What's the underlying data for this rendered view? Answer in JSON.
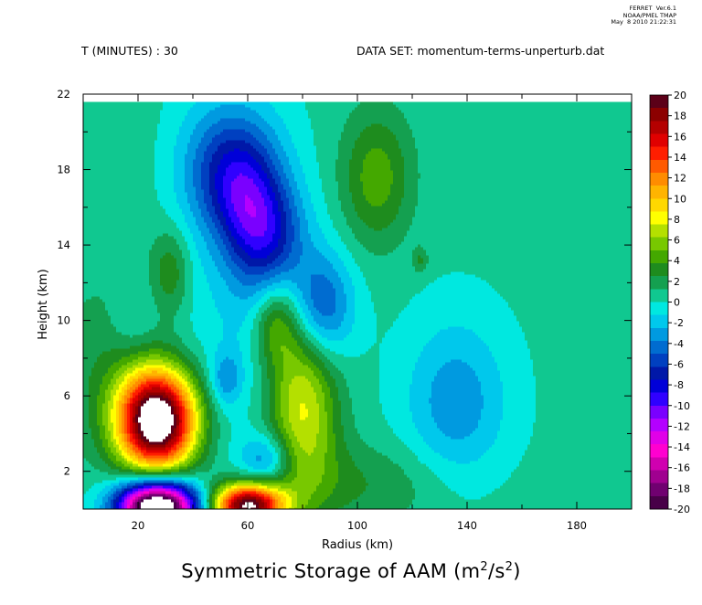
{
  "header": {
    "stamp_line1": "FERRET  Ver.6.1",
    "stamp_line2": "NOAA/PMEL TMAP",
    "stamp_line3": "May  8 2010 21:22:31",
    "time_label": "T (MINUTES) : 30",
    "dataset_label": "DATA SET: momentum-terms-unperturb.dat"
  },
  "title_main": "Symmetric Storage of AAM (m",
  "title_sup1": "2",
  "title_mid": "/s",
  "title_sup2": "2",
  "title_end": ")",
  "chart_data": {
    "type": "heatmap",
    "title": "Symmetric Storage of AAM (m2/s2)",
    "xlabel": "Radius (km)",
    "ylabel": "Height (km)",
    "xlim": [
      0,
      200
    ],
    "ylim": [
      0,
      22
    ],
    "plot_top_y": 21.6,
    "x_ticks": [
      20,
      60,
      100,
      140,
      180
    ],
    "y_ticks": [
      2,
      6,
      10,
      14,
      18,
      22
    ],
    "x_tick_labels": [
      "20",
      "60",
      "100",
      "140",
      "180"
    ],
    "y_tick_labels": [
      "2",
      "6",
      "10",
      "14",
      "18",
      "22"
    ],
    "colorbar": {
      "min": -20,
      "max": 20,
      "step": 2,
      "labels": [
        "20",
        "18",
        "16",
        "14",
        "12",
        "10",
        "8",
        "6",
        "4",
        "2",
        "0",
        "-2",
        "-4",
        "-6",
        "-8",
        "-10",
        "-12",
        "-14",
        "-16",
        "-18",
        "-20"
      ],
      "colors": [
        "#5c0018",
        "#8c0000",
        "#b40000",
        "#e00000",
        "#ff1e00",
        "#ff5a00",
        "#ff8c00",
        "#ffb400",
        "#ffd800",
        "#ffff00",
        "#b4e000",
        "#78c800",
        "#44a800",
        "#1e8c1e",
        "#14a050",
        "#10c890",
        "#00e8e0",
        "#00c8ec",
        "#009ae0",
        "#006cd0",
        "#0040c0",
        "#0018a8",
        "#0000d8",
        "#3000ff",
        "#7a00ff",
        "#b400ff",
        "#e000e8",
        "#ff00d0",
        "#d000b0",
        "#a00090",
        "#700070",
        "#480048"
      ]
    },
    "background_value": 0.3,
    "features": [
      {
        "x": 27,
        "y": 4.7,
        "sx": 10,
        "sy": 1.9,
        "amp": 23.5
      },
      {
        "x": 27,
        "y": 0.1,
        "sx": 10,
        "sy": 1.0,
        "amp": -26
      },
      {
        "x": 60,
        "y": 0.2,
        "sx": 9,
        "sy": 0.8,
        "amp": 20
      },
      {
        "x": 55,
        "y": 18.0,
        "sx": 12,
        "sy": 2.3,
        "amp": -7
      },
      {
        "x": 67,
        "y": 14.5,
        "sx": 10,
        "sy": 2.0,
        "amp": -6.5
      },
      {
        "x": 59,
        "y": 16.3,
        "sx": 8,
        "sy": 1.6,
        "amp": -2
      },
      {
        "x": 87,
        "y": 10.7,
        "sx": 8,
        "sy": 2.0,
        "amp": -6
      },
      {
        "x": 80,
        "y": 5.5,
        "sx": 9,
        "sy": 3.3,
        "amp": 7.5
      },
      {
        "x": 70,
        "y": 9.8,
        "sx": 6,
        "sy": 1.5,
        "amp": 4.2
      },
      {
        "x": 98,
        "y": 1.3,
        "sx": 28,
        "sy": 1.6,
        "amp": 2.2
      },
      {
        "x": 67,
        "y": 2.6,
        "sx": 7,
        "sy": 1.0,
        "amp": -4.8
      },
      {
        "x": 52,
        "y": 6.9,
        "sx": 4,
        "sy": 1.0,
        "amp": -3.3
      },
      {
        "x": 107,
        "y": 17.6,
        "sx": 9,
        "sy": 2.5,
        "amp": 4.2
      },
      {
        "x": 32,
        "y": 12.6,
        "sx": 5,
        "sy": 1.6,
        "amp": 3.3
      },
      {
        "x": 18,
        "y": 9.9,
        "sx": 6,
        "sy": 1.5,
        "amp": -1.6
      },
      {
        "x": 136,
        "y": 5.6,
        "sx": 13,
        "sy": 3.1,
        "amp": -3.7
      },
      {
        "x": 123,
        "y": 13.2,
        "sx": 2,
        "sy": 0.5,
        "amp": 2.3
      },
      {
        "x": 62,
        "y": 11.8,
        "sx": 8,
        "sy": 4.0,
        "amp": -1.5
      },
      {
        "x": 40,
        "y": 12.0,
        "sx": 20,
        "sy": 9.0,
        "amp": -1.2
      },
      {
        "x": 10,
        "y": 7.5,
        "sx": 15,
        "sy": 3.5,
        "amp": 2.0
      },
      {
        "x": 22,
        "y": 16.0,
        "sx": 12,
        "sy": 6.0,
        "amp": 0.9
      }
    ]
  }
}
